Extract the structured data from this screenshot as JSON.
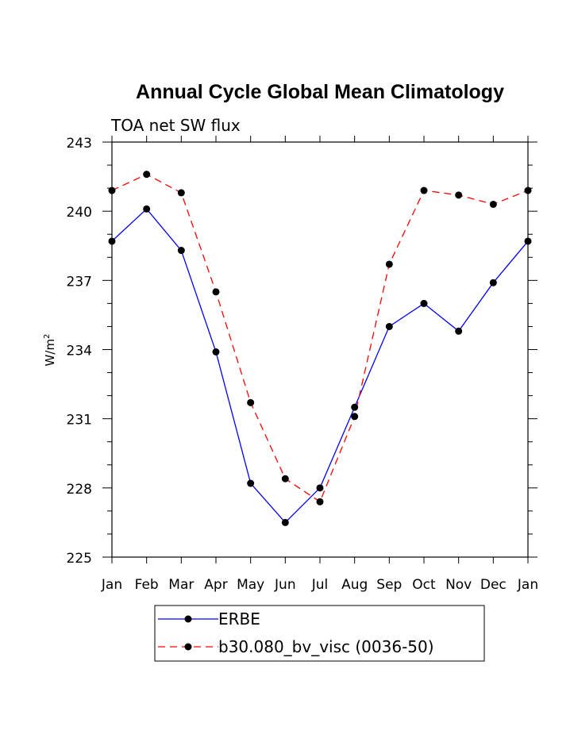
{
  "chart_data": {
    "type": "line",
    "title": "Annual Cycle Global Mean Climatology",
    "subtitle": "TOA net SW flux",
    "ylabel": "W/m",
    "ylabel_sup": "2",
    "xlabel": "",
    "categories": [
      "Jan",
      "Feb",
      "Mar",
      "Apr",
      "May",
      "Jun",
      "Jul",
      "Aug",
      "Sep",
      "Oct",
      "Nov",
      "Dec",
      "Jan"
    ],
    "ylim": [
      225,
      243
    ],
    "yticks": [
      225,
      228,
      231,
      234,
      237,
      240,
      243
    ],
    "grid": false,
    "legend_position": "bottom",
    "series": [
      {
        "name": "ERBE",
        "color": "#0000ff",
        "dash": "solid",
        "marker": "filled-circle",
        "values": [
          238.7,
          240.1,
          238.3,
          233.9,
          228.2,
          226.5,
          228.0,
          231.5,
          235.0,
          236.0,
          234.8,
          236.9,
          238.7
        ]
      },
      {
        "name": "b30.080_bv_visc (0036-50)",
        "color": "#ff0000",
        "dash": "dashed",
        "marker": "filled-circle",
        "values": [
          240.9,
          241.6,
          240.8,
          236.5,
          231.7,
          228.4,
          227.4,
          231.1,
          237.7,
          240.9,
          240.7,
          240.3,
          240.9
        ]
      }
    ]
  }
}
